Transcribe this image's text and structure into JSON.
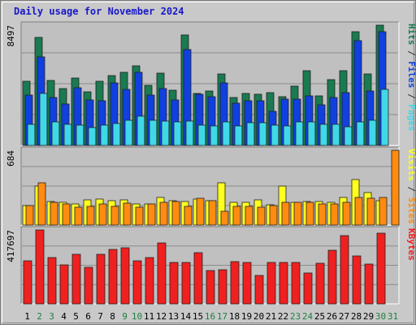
{
  "chart_data": [
    {
      "type": "bar",
      "title": "Daily usage for November 2024",
      "ymax_label": "8497",
      "ylim": [
        0,
        8497
      ],
      "categories": [
        "1",
        "2",
        "3",
        "4",
        "5",
        "6",
        "7",
        "8",
        "9",
        "10",
        "11",
        "12",
        "13",
        "14",
        "15",
        "16",
        "17",
        "18",
        "19",
        "20",
        "21",
        "22",
        "23",
        "24",
        "25",
        "26",
        "27",
        "28",
        "29",
        "30",
        "31"
      ],
      "series": [
        {
          "name": "Hits",
          "color": "#1a7a50",
          "values": [
            4520,
            7630,
            4590,
            4040,
            4780,
            3800,
            4550,
            4920,
            5180,
            5640,
            4240,
            5090,
            3920,
            7800,
            3700,
            3860,
            5070,
            3390,
            3660,
            3640,
            3710,
            3420,
            4200,
            5300,
            3530,
            4630,
            5310,
            8010,
            5040,
            8497,
            0
          ]
        },
        {
          "name": "Files",
          "color": "#1040e0",
          "values": [
            3550,
            6250,
            3380,
            2950,
            4080,
            3230,
            3150,
            4410,
            3960,
            5150,
            3560,
            4000,
            3220,
            6790,
            3610,
            3420,
            4410,
            3000,
            3170,
            3180,
            2440,
            3290,
            3270,
            3490,
            2870,
            3410,
            3730,
            7390,
            3860,
            8040,
            0
          ]
        },
        {
          "name": "Pages",
          "color": "#40d8e8",
          "values": [
            1520,
            3680,
            1680,
            1520,
            1420,
            1240,
            1450,
            1560,
            1780,
            2050,
            1770,
            1710,
            1650,
            1720,
            1420,
            1380,
            1660,
            1400,
            1600,
            1600,
            1440,
            1380,
            1670,
            1660,
            1500,
            1470,
            1300,
            1670,
            1780,
            3950,
            0
          ]
        }
      ],
      "right_axis_label": [
        "Pages",
        " / ",
        "Files",
        " / ",
        "Hits"
      ],
      "right_axis_colors": [
        "#40d8e8",
        "#333333",
        "#1040e0",
        "#333333",
        "#1a7a50"
      ]
    },
    {
      "type": "bar",
      "ymax_label": "684",
      "ylim": [
        0,
        684
      ],
      "series": [
        {
          "name": "Visits",
          "color": "#ffff20",
          "values": [
            180,
            355,
            215,
            210,
            195,
            230,
            240,
            225,
            230,
            195,
            195,
            255,
            225,
            215,
            240,
            225,
            385,
            210,
            210,
            230,
            185,
            360,
            210,
            215,
            215,
            210,
            255,
            420,
            295,
            225,
            0
          ]
        },
        {
          "name": "Sites",
          "color": "#ff8c10",
          "values": [
            175,
            385,
            205,
            195,
            165,
            170,
            190,
            170,
            200,
            160,
            195,
            210,
            215,
            170,
            245,
            225,
            130,
            170,
            170,
            165,
            175,
            210,
            210,
            210,
            190,
            190,
            210,
            255,
            245,
            255,
            684
          ]
        }
      ],
      "right_axis_label": [
        "Sites",
        " / ",
        "Visits"
      ],
      "right_axis_colors": [
        "#ff8c10",
        "#333333",
        "#ffff20"
      ]
    },
    {
      "type": "bar",
      "ymax_label": "417697",
      "ylim": [
        0,
        417697
      ],
      "series": [
        {
          "name": "KBytes",
          "color": "#f02020",
          "values": [
            241840,
            417697,
            260450,
            221030,
            278350,
            206030,
            281050,
            306200,
            318050,
            242960,
            262130,
            346190,
            232280,
            236240,
            290570,
            189860,
            192340,
            238660,
            235610,
            160510,
            236240,
            232280,
            235610,
            176130,
            230230,
            303120,
            384850,
            269020,
            224050,
            398010,
            0
          ]
        }
      ],
      "right_axis_label": [
        "KBytes"
      ],
      "right_axis_colors": [
        "#f02020"
      ]
    }
  ],
  "x_axis": {
    "days": [
      "1",
      "2",
      "3",
      "4",
      "5",
      "6",
      "7",
      "8",
      "9",
      "10",
      "11",
      "12",
      "13",
      "14",
      "15",
      "16",
      "17",
      "18",
      "19",
      "20",
      "21",
      "22",
      "23",
      "24",
      "25",
      "26",
      "27",
      "28",
      "29",
      "30",
      "31"
    ],
    "weekend": [
      false,
      true,
      true,
      false,
      false,
      false,
      false,
      false,
      true,
      true,
      false,
      false,
      false,
      false,
      false,
      true,
      true,
      false,
      false,
      false,
      false,
      false,
      true,
      true,
      false,
      false,
      false,
      false,
      false,
      true,
      true
    ]
  },
  "colors": {
    "panel_bg": "#c0c0c0",
    "frame_bg": "#c9c9c9",
    "title": "#1818c8",
    "weekday_label": "#000000",
    "weekend_label": "#208040"
  }
}
